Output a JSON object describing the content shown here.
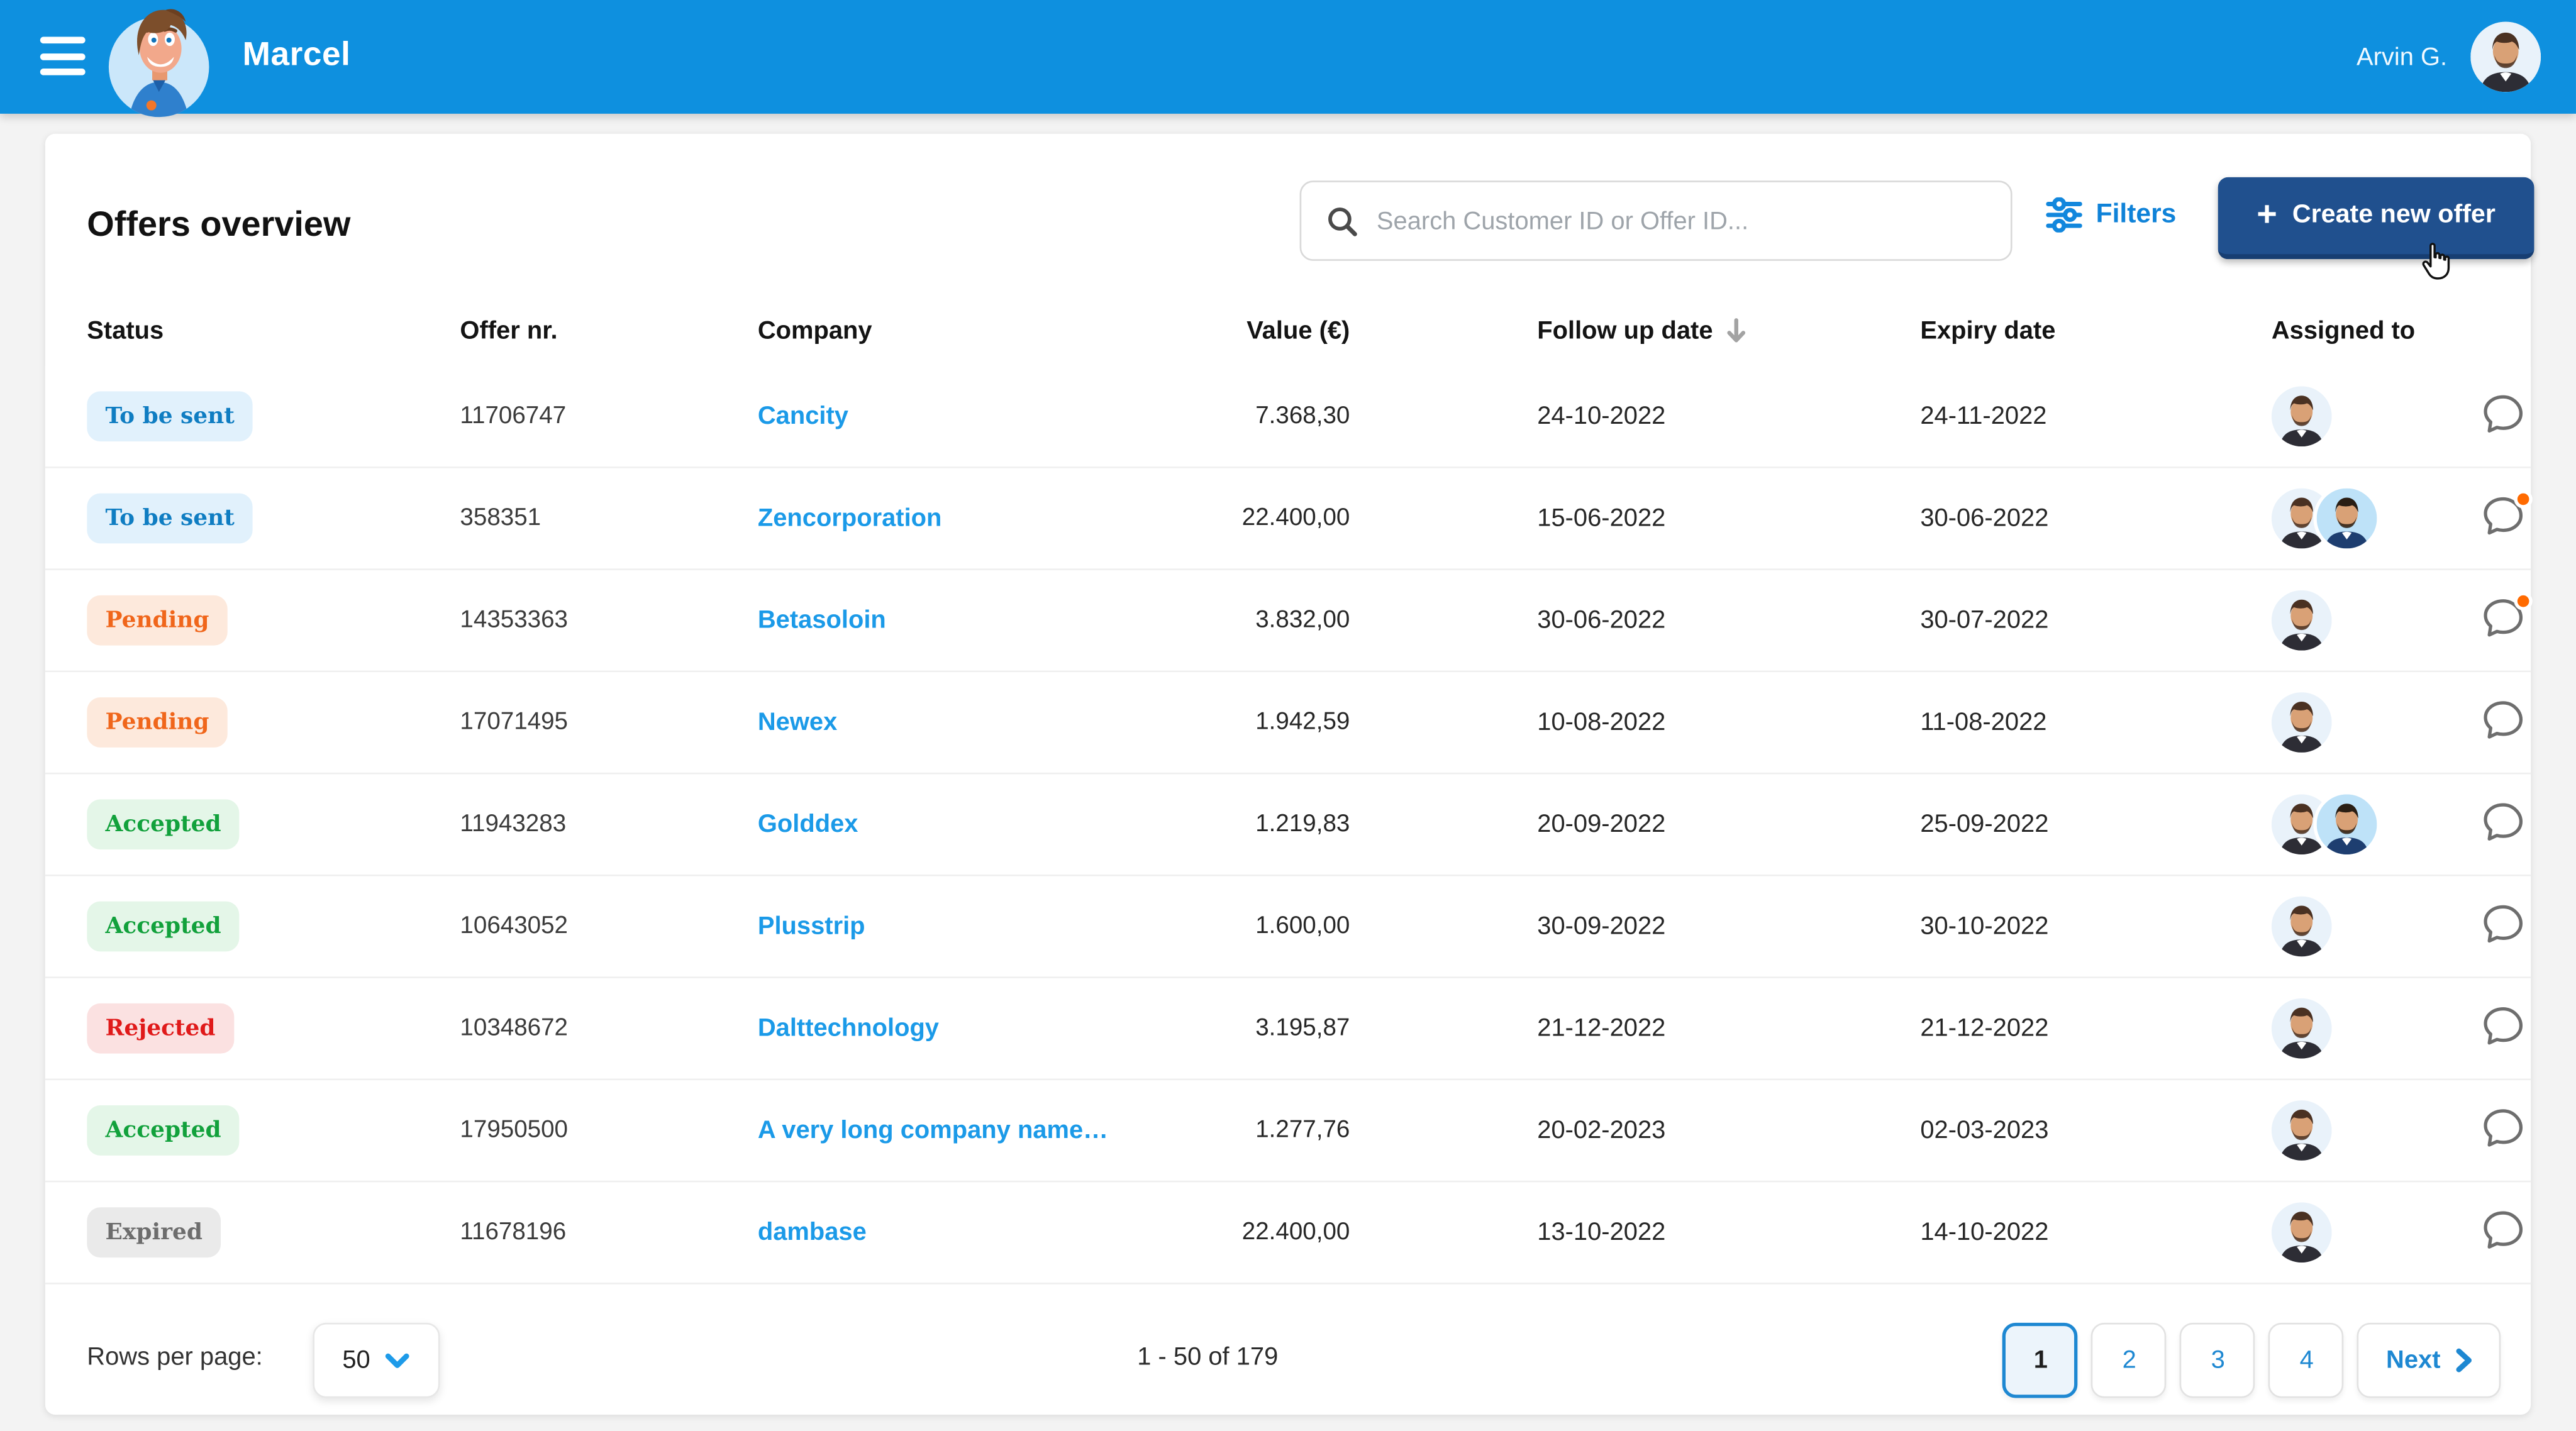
{
  "topbar": {
    "brand": "Marcel",
    "user_name": "Arvin G."
  },
  "header": {
    "title": "Offers overview",
    "search_placeholder": "Search Customer ID or Offer ID...",
    "filters_label": "Filters",
    "create_label": "Create new offer",
    "create_plus": "+"
  },
  "table": {
    "columns": [
      "Status",
      "Offer nr.",
      "Company",
      "Value (€)",
      "Follow up date",
      "Expiry date",
      "Assigned to"
    ],
    "sorted_column": "Follow up date",
    "sort_direction": "descending",
    "rows": [
      {
        "status": "To be sent",
        "status_type": "to-be-sent",
        "offer_nr": "11706747",
        "company": "Cancity",
        "value": "7.368,30",
        "follow_up": "24-10-2022",
        "expiry": "24-11-2022",
        "assignee_avatars": [
          "man-suit"
        ],
        "notification": false
      },
      {
        "status": "To be sent",
        "status_type": "to-be-sent",
        "offer_nr": "358351",
        "company": "Zencorporation",
        "value": "22.400,00",
        "follow_up": "15-06-2022",
        "expiry": "30-06-2022",
        "assignee_avatars": [
          "man-suit",
          "man-navy"
        ],
        "notification": true
      },
      {
        "status": "Pending",
        "status_type": "pending",
        "offer_nr": "14353363",
        "company": "Betasoloin",
        "value": "3.832,00",
        "follow_up": "30-06-2022",
        "expiry": "30-07-2022",
        "assignee_avatars": [
          "man-suit"
        ],
        "notification": true
      },
      {
        "status": "Pending",
        "status_type": "pending",
        "offer_nr": "17071495",
        "company": "Newex",
        "value": "1.942,59",
        "follow_up": "10-08-2022",
        "expiry": "11-08-2022",
        "assignee_avatars": [
          "man-suit"
        ],
        "notification": false
      },
      {
        "status": "Accepted",
        "status_type": "accepted",
        "offer_nr": "11943283",
        "company": "Golddex",
        "value": "1.219,83",
        "follow_up": "20-09-2022",
        "expiry": "25-09-2022",
        "assignee_avatars": [
          "man-suit",
          "man-navy"
        ],
        "notification": false
      },
      {
        "status": "Accepted",
        "status_type": "accepted",
        "offer_nr": "10643052",
        "company": "Plusstrip",
        "value": "1.600,00",
        "follow_up": "30-09-2022",
        "expiry": "30-10-2022",
        "assignee_avatars": [
          "man-suit"
        ],
        "notification": false
      },
      {
        "status": "Rejected",
        "status_type": "rejected",
        "offer_nr": "10348672",
        "company": "Dalttechnology",
        "value": "3.195,87",
        "follow_up": "21-12-2022",
        "expiry": "21-12-2022",
        "assignee_avatars": [
          "man-suit"
        ],
        "notification": false
      },
      {
        "status": "Accepted",
        "status_type": "accepted",
        "offer_nr": "17950500",
        "company": "A very long company name…",
        "value": "1.277,76",
        "follow_up": "20-02-2023",
        "expiry": "02-03-2023",
        "assignee_avatars": [
          "man-suit"
        ],
        "notification": false
      },
      {
        "status": "Expired",
        "status_type": "expired",
        "offer_nr": "11678196",
        "company": "dambase",
        "value": "22.400,00",
        "follow_up": "13-10-2022",
        "expiry": "14-10-2022",
        "assignee_avatars": [
          "man-suit"
        ],
        "notification": false
      }
    ]
  },
  "pagination": {
    "rows_per_page_label": "Rows per page:",
    "rows_per_page_value": "50",
    "range_label": "1 - 50 of 179",
    "pages": [
      "1",
      "2",
      "3",
      "4"
    ],
    "active_page": "1",
    "next_label": "Next"
  },
  "colors": {
    "topbar_blue": "#0E90DF",
    "link_blue": "#1B9AE8",
    "filters_blue": "#0F82D8",
    "create_button_navy": "#20508E",
    "pagination_blue": "#1E88D2",
    "notification_orange": "#FF6A00",
    "status": {
      "to_be_sent": {
        "text": "#0F7DC2",
        "bg": "#E1F1FC"
      },
      "pending": {
        "text": "#F0661B",
        "bg": "#FDE9DC"
      },
      "accepted": {
        "text": "#12A13C",
        "bg": "#E4F6E8"
      },
      "rejected": {
        "text": "#E01A1A",
        "bg": "#FBE1E1"
      },
      "expired": {
        "text": "#6D6D6D",
        "bg": "#EAEAEA"
      }
    }
  }
}
